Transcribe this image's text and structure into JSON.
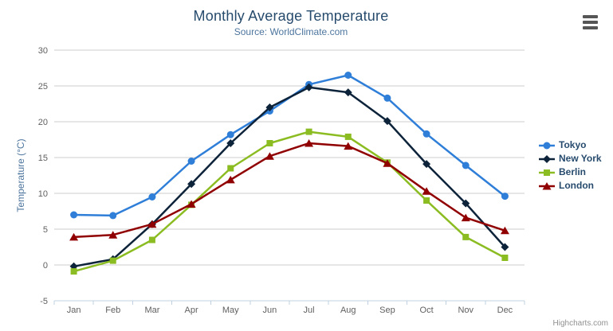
{
  "chart_data": {
    "type": "line",
    "title": "Monthly Average Temperature",
    "subtitle": "Source: WorldClimate.com",
    "xlabel": "",
    "ylabel": "Temperature (°C)",
    "categories": [
      "Jan",
      "Feb",
      "Mar",
      "Apr",
      "May",
      "Jun",
      "Jul",
      "Aug",
      "Sep",
      "Oct",
      "Nov",
      "Dec"
    ],
    "ylim": [
      -5,
      30
    ],
    "yticks": [
      -5,
      0,
      5,
      10,
      15,
      20,
      25,
      30
    ],
    "grid": true,
    "legend_position": "right",
    "series": [
      {
        "name": "Tokyo",
        "color": "#2f7ed8",
        "marker": "circle",
        "values": [
          7.0,
          6.9,
          9.5,
          14.5,
          18.2,
          21.5,
          25.2,
          26.5,
          23.3,
          18.3,
          13.9,
          9.6
        ]
      },
      {
        "name": "New York",
        "color": "#0d233a",
        "marker": "diamond",
        "values": [
          -0.2,
          0.8,
          5.7,
          11.3,
          17.0,
          22.0,
          24.8,
          24.1,
          20.1,
          14.1,
          8.6,
          2.5
        ]
      },
      {
        "name": "Berlin",
        "color": "#8bbc21",
        "marker": "square",
        "values": [
          -0.9,
          0.6,
          3.5,
          8.4,
          13.5,
          17.0,
          18.6,
          17.9,
          14.3,
          9.0,
          3.9,
          1.0
        ]
      },
      {
        "name": "London",
        "color": "#910000",
        "marker": "triangle",
        "values": [
          3.9,
          4.2,
          5.7,
          8.5,
          11.9,
          15.2,
          17.0,
          16.6,
          14.2,
          10.3,
          6.6,
          4.8
        ]
      }
    ],
    "credits": "Highcharts.com"
  },
  "colors": {
    "title": "#274b6d",
    "subtitle": "#4d759e",
    "axis_title": "#4d759e",
    "axis_labels": "#606060",
    "axis_line": "#c0d0e0",
    "gridline": "#cccccc",
    "legend_text": "#274b6d",
    "credits": "#909090",
    "menu_icon": "#565656"
  },
  "icons": {
    "context_menu": "hamburger-icon"
  }
}
